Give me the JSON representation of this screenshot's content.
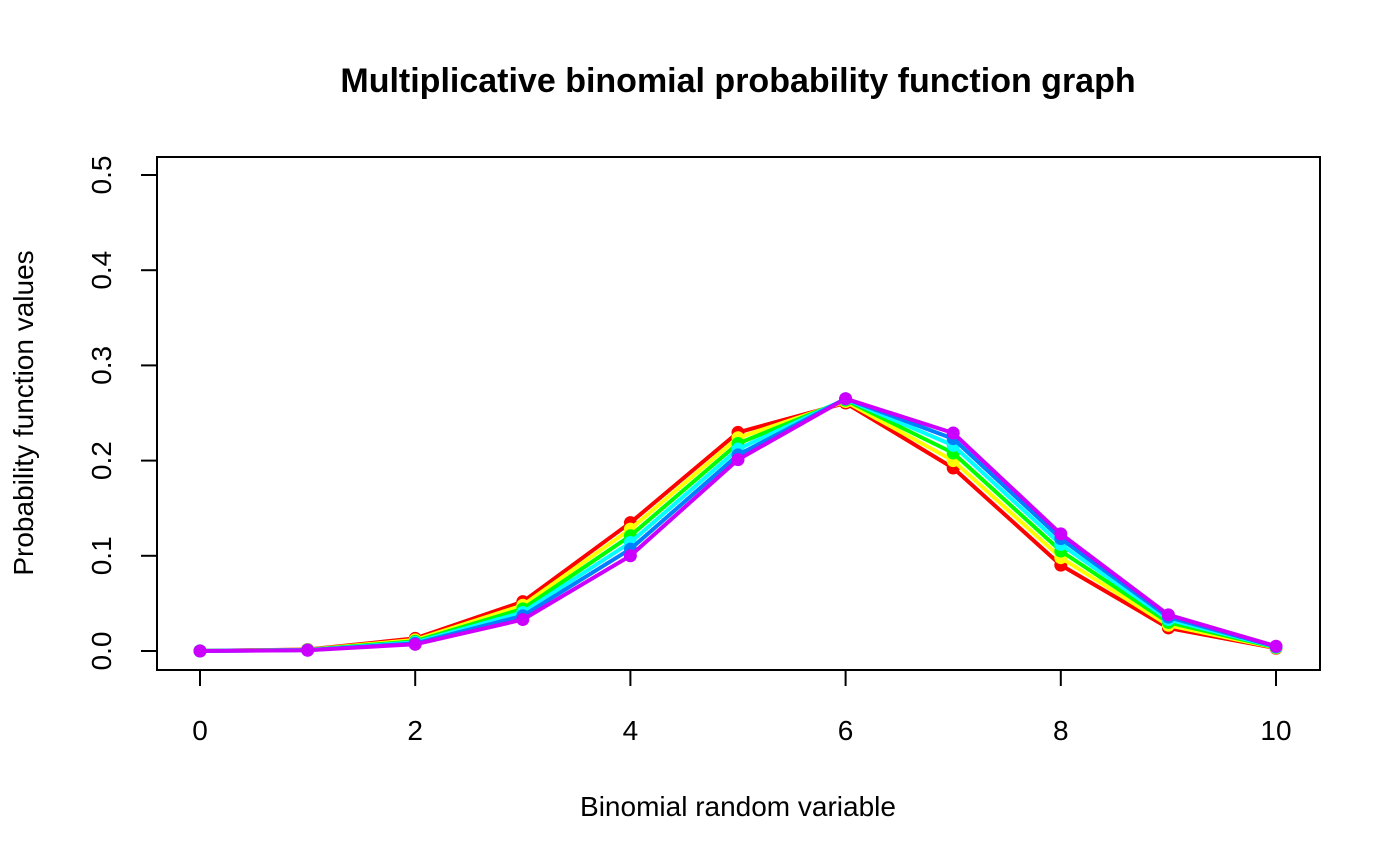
{
  "chart_data": {
    "type": "line",
    "title": "Multiplicative binomial probability function graph",
    "xlabel": "Binomial random variable",
    "ylabel": "Probability function values",
    "xlim": [
      0,
      10
    ],
    "ylim": [
      0,
      0.5
    ],
    "x_ticks": [
      0,
      2,
      4,
      6,
      8,
      10
    ],
    "y_ticks": [
      0.0,
      0.1,
      0.2,
      0.3,
      0.4,
      0.5
    ],
    "y_tick_labels": [
      "0.0",
      "0.1",
      "0.2",
      "0.3",
      "0.4",
      "0.5"
    ],
    "grid": false,
    "x": [
      0,
      1,
      2,
      3,
      4,
      5,
      6,
      7,
      8,
      9,
      10
    ],
    "series": [
      {
        "color": "#FF0000",
        "values": [
          0.0001,
          0.0016,
          0.0132,
          0.0518,
          0.1348,
          0.2296,
          0.2605,
          0.1922,
          0.0902,
          0.0242,
          0.0029
        ]
      },
      {
        "color": "#FFFF00",
        "values": [
          0.0001,
          0.0014,
          0.0117,
          0.048,
          0.128,
          0.224,
          0.262,
          0.2,
          0.098,
          0.027,
          0.0034
        ]
      },
      {
        "color": "#00FF00",
        "values": [
          0.0001,
          0.0012,
          0.0103,
          0.0443,
          0.121,
          0.218,
          0.2635,
          0.208,
          0.105,
          0.03,
          0.0038
        ]
      },
      {
        "color": "#00FFFF",
        "values": [
          0.0001,
          0.001,
          0.009,
          0.0405,
          0.114,
          0.212,
          0.2645,
          0.216,
          0.112,
          0.033,
          0.0042
        ]
      },
      {
        "color": "#0080FF",
        "values": [
          0.0,
          0.0009,
          0.008,
          0.037,
          0.107,
          0.206,
          0.265,
          0.223,
          0.118,
          0.0355,
          0.0046
        ]
      },
      {
        "color": "#CC00FF",
        "values": [
          0.0,
          0.0008,
          0.007,
          0.033,
          0.1,
          0.201,
          0.265,
          0.229,
          0.123,
          0.038,
          0.005
        ]
      }
    ]
  }
}
